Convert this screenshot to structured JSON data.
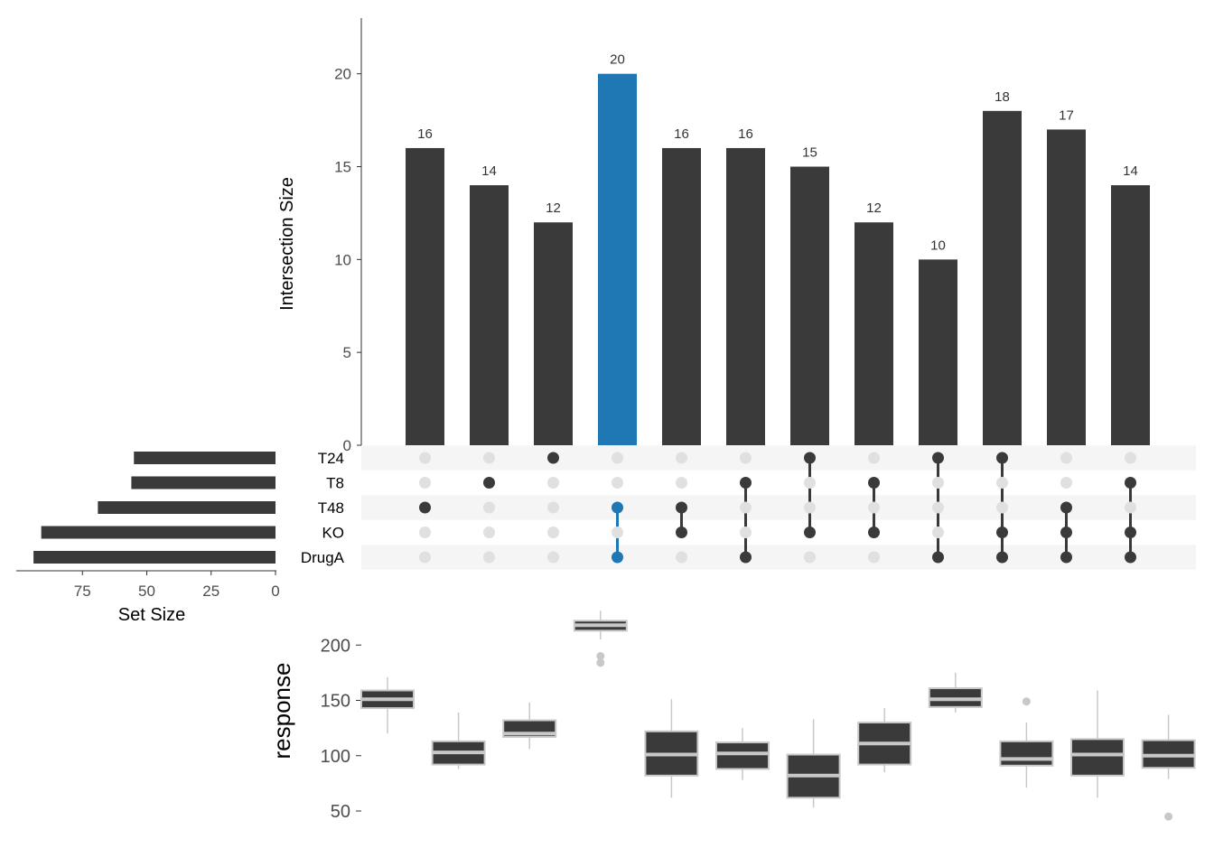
{
  "colors": {
    "bar": "#3a3a3a",
    "highlight": "#1f77b4",
    "dot_inactive": "#e0e0e0",
    "stripe": "#f5f5f5",
    "box_fill": "#3a3a3a",
    "box_line": "#c8c8c8",
    "axis": "#333333"
  },
  "chart_data": [
    {
      "type": "bar",
      "ylabel": "Intersection Size",
      "ylim": [
        0,
        23
      ],
      "yticks": [
        0,
        5,
        10,
        15,
        20
      ],
      "values": [
        16,
        14,
        12,
        20,
        16,
        16,
        15,
        12,
        10,
        18,
        17,
        14
      ],
      "labels": [
        "16",
        "14",
        "12",
        "20",
        "16",
        "16",
        "15",
        "12",
        "10",
        "18",
        "17",
        "14"
      ],
      "highlight_index": 3,
      "grid": false
    },
    {
      "type": "bar",
      "orientation": "horizontal-reversed",
      "xlabel": "Set Size",
      "sets": [
        "T24",
        "T8",
        "T48",
        "KO",
        "DrugA"
      ],
      "values": [
        55,
        56,
        69,
        91,
        94
      ],
      "xticks": [
        75,
        50,
        25,
        0
      ],
      "xlim": [
        0,
        100
      ]
    },
    {
      "type": "table",
      "name": "intersection matrix",
      "sets": [
        "T24",
        "T8",
        "T48",
        "KO",
        "DrugA"
      ],
      "membership": [
        [
          "T48"
        ],
        [
          "T8"
        ],
        [
          "T24"
        ],
        [
          "T48",
          "DrugA"
        ],
        [
          "T48",
          "KO"
        ],
        [
          "T8",
          "DrugA"
        ],
        [
          "T24",
          "KO"
        ],
        [
          "T8",
          "KO"
        ],
        [
          "T24",
          "DrugA"
        ],
        [
          "T24",
          "KO",
          "DrugA"
        ],
        [
          "T48",
          "KO",
          "DrugA"
        ],
        [
          "T8",
          "KO",
          "DrugA"
        ]
      ]
    },
    {
      "type": "box",
      "ylabel": "response",
      "ylim": [
        40,
        240
      ],
      "yticks": [
        50,
        100,
        150,
        200
      ],
      "boxes": [
        {
          "whisker_low": 120,
          "q1": 143,
          "median": 151,
          "q3": 159,
          "whisker_high": 171,
          "outliers": []
        },
        {
          "whisker_low": 88,
          "q1": 92,
          "median": 103,
          "q3": 113,
          "whisker_high": 139,
          "outliers": []
        },
        {
          "whisker_low": 106,
          "q1": 117,
          "median": 120,
          "q3": 132,
          "whisker_high": 148,
          "outliers": []
        },
        {
          "whisker_low": 205,
          "q1": 213,
          "median": 218,
          "q3": 222,
          "whisker_high": 231,
          "outliers": [
            190,
            184
          ]
        },
        {
          "whisker_low": 62,
          "q1": 82,
          "median": 101,
          "q3": 122,
          "whisker_high": 151,
          "outliers": []
        },
        {
          "whisker_low": 78,
          "q1": 88,
          "median": 102,
          "q3": 112,
          "whisker_high": 125,
          "outliers": []
        },
        {
          "whisker_low": 53,
          "q1": 62,
          "median": 82,
          "q3": 101,
          "whisker_high": 133,
          "outliers": []
        },
        {
          "whisker_low": 85,
          "q1": 92,
          "median": 111,
          "q3": 130,
          "whisker_high": 143,
          "outliers": []
        },
        {
          "whisker_low": 139,
          "q1": 144,
          "median": 151,
          "q3": 161,
          "whisker_high": 175,
          "outliers": []
        },
        {
          "whisker_low": 71,
          "q1": 91,
          "median": 97,
          "q3": 113,
          "whisker_high": 130,
          "outliers": [
            149
          ]
        },
        {
          "whisker_low": 62,
          "q1": 82,
          "median": 101,
          "q3": 115,
          "whisker_high": 159,
          "outliers": []
        },
        {
          "whisker_low": 79,
          "q1": 89,
          "median": 100,
          "q3": 114,
          "whisker_high": 137,
          "outliers": [
            45
          ]
        }
      ]
    }
  ]
}
